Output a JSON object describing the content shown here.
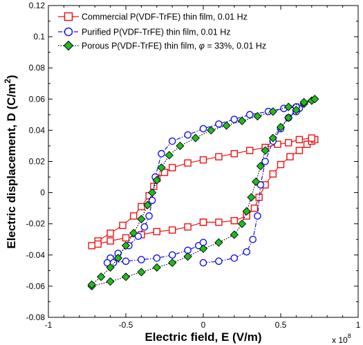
{
  "chart_data": {
    "type": "scatter",
    "xlabel": "Electric field, E (V/m)",
    "ylabel_main": "Electric displacement, D (C/m",
    "ylabel_sup": "2",
    "ylabel_tail": ")",
    "x_multiplier": "x 10",
    "x_multiplier_exp": "8",
    "xlim": [
      -1,
      1
    ],
    "ylim": [
      -0.08,
      0.12
    ],
    "xticks": [
      -1,
      -0.5,
      0,
      0.5,
      1
    ],
    "xtick_labels": [
      "-1",
      "-0.5",
      "0",
      "0.5",
      "1"
    ],
    "yticks": [
      -0.08,
      -0.06,
      -0.04,
      -0.02,
      0,
      0.02,
      0.04,
      0.06,
      0.08,
      0.1,
      0.12
    ],
    "ytick_labels": [
      "-0.08",
      "-0.06",
      "-0.04",
      "-0.02",
      "0",
      "0.02",
      "0.04",
      "0.06",
      "0.08",
      "0.1",
      "0.12"
    ],
    "grid": false,
    "legend_position": "top-left",
    "legend": {
      "s1": "Commercial P(VDF-TrFE) thin film, 0.01 Hz",
      "s2": "Purified P(VDF-TrFE) thin film, 0.01 Hz",
      "s3_pre": "Porous P(VDF-TrFE) thin film, ",
      "s3_phi": "φ",
      "s3_post": " = 33%, 0.01 Hz"
    },
    "series": [
      {
        "name": "Commercial P(VDF-TrFE) thin film, 0.01 Hz",
        "color": "#ee1111",
        "marker": "square",
        "line": "solid",
        "x": [
          0.0,
          0.1,
          0.2,
          0.28,
          0.33,
          0.36,
          0.4,
          0.45,
          0.5,
          0.56,
          0.62,
          0.67,
          0.7,
          0.72,
          0.7,
          0.62,
          0.55,
          0.48,
          0.4,
          0.3,
          0.2,
          0.1,
          0.0,
          -0.1,
          -0.2,
          -0.25,
          -0.3,
          -0.32,
          -0.35,
          -0.4,
          -0.45,
          -0.52,
          -0.6,
          -0.68,
          -0.72,
          -0.68,
          -0.6,
          -0.5,
          -0.4,
          -0.3,
          -0.2,
          -0.1,
          0.0
        ],
        "y": [
          -0.019,
          -0.019,
          -0.018,
          -0.015,
          -0.01,
          -0.003,
          0.005,
          0.012,
          0.018,
          0.023,
          0.027,
          0.031,
          0.033,
          0.034,
          0.035,
          0.034,
          0.032,
          0.031,
          0.029,
          0.027,
          0.025,
          0.023,
          0.021,
          0.019,
          0.016,
          0.013,
          0.009,
          0.004,
          -0.002,
          -0.009,
          -0.015,
          -0.021,
          -0.026,
          -0.031,
          -0.034,
          -0.033,
          -0.031,
          -0.029,
          -0.027,
          -0.025,
          -0.024,
          -0.022,
          -0.019
        ]
      },
      {
        "name": "Purified P(VDF-TrFE) thin film, 0.01 Hz",
        "color": "#1111ee",
        "marker": "circle",
        "line": "dashdot",
        "x": [
          0.0,
          0.1,
          0.2,
          0.28,
          0.32,
          0.35,
          0.37,
          0.4,
          0.45,
          0.5,
          0.55,
          0.6,
          0.62,
          0.6,
          0.52,
          0.42,
          0.3,
          0.2,
          0.1,
          0.0,
          -0.1,
          -0.2,
          -0.27,
          -0.31,
          -0.33,
          -0.35,
          -0.38,
          -0.42,
          -0.48,
          -0.55,
          -0.6,
          -0.62,
          -0.58,
          -0.5,
          -0.4,
          -0.3,
          -0.2,
          -0.1,
          -0.03,
          0.0
        ],
        "y": [
          -0.045,
          -0.044,
          -0.042,
          -0.038,
          -0.03,
          -0.015,
          0.005,
          0.02,
          0.033,
          0.041,
          0.048,
          0.052,
          0.054,
          0.055,
          0.054,
          0.052,
          0.05,
          0.047,
          0.044,
          0.041,
          0.037,
          0.033,
          0.025,
          0.01,
          -0.005,
          -0.015,
          -0.022,
          -0.028,
          -0.034,
          -0.039,
          -0.042,
          -0.045,
          -0.045,
          -0.044,
          -0.043,
          -0.042,
          -0.04,
          -0.037,
          -0.034,
          -0.032
        ]
      },
      {
        "name": "Porous P(VDF-TrFE) thin film, φ = 33%, 0.01 Hz",
        "color": "#22bb22",
        "marker": "diamond",
        "line": "dotted",
        "x": [
          -0.72,
          -0.6,
          -0.5,
          -0.4,
          -0.3,
          -0.2,
          -0.1,
          0.0,
          0.1,
          0.2,
          0.25,
          0.28,
          0.31,
          0.34,
          0.37,
          0.4,
          0.45,
          0.5,
          0.55,
          0.6,
          0.65,
          0.7,
          0.72,
          0.65,
          0.55,
          0.45,
          0.35,
          0.25,
          0.15,
          0.05,
          -0.05,
          -0.15,
          -0.22,
          -0.27,
          -0.3,
          -0.33,
          -0.36,
          -0.4,
          -0.45,
          -0.5,
          -0.55,
          -0.6,
          -0.66,
          -0.72
        ],
        "y": [
          -0.06,
          -0.057,
          -0.054,
          -0.051,
          -0.048,
          -0.045,
          -0.041,
          -0.036,
          -0.032,
          -0.027,
          -0.02,
          -0.012,
          -0.003,
          0.007,
          0.017,
          0.027,
          0.035,
          0.042,
          0.048,
          0.053,
          0.057,
          0.059,
          0.06,
          0.058,
          0.055,
          0.052,
          0.049,
          0.046,
          0.043,
          0.04,
          0.035,
          0.03,
          0.024,
          0.016,
          0.008,
          0.0,
          -0.008,
          -0.017,
          -0.026,
          -0.034,
          -0.042,
          -0.048,
          -0.054,
          -0.059
        ]
      }
    ]
  }
}
